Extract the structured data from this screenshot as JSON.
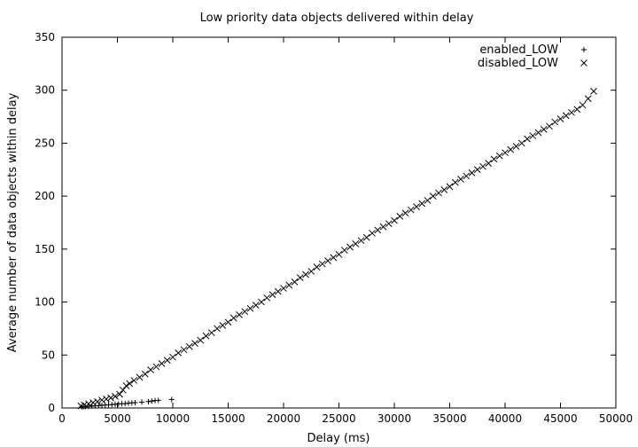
{
  "chart_data": {
    "type": "scatter",
    "title": "Low priority data objects delivered within delay",
    "xlabel": "Delay (ms)",
    "ylabel": "Average number of data objects within delay",
    "xlim": [
      0,
      50000
    ],
    "ylim": [
      0,
      350
    ],
    "xticks": [
      0,
      5000,
      10000,
      15000,
      20000,
      25000,
      30000,
      35000,
      40000,
      45000,
      50000
    ],
    "yticks": [
      0,
      50,
      100,
      150,
      200,
      250,
      300,
      350
    ],
    "grid": false,
    "legend_position": "top-right",
    "series": [
      {
        "name": "enabled_LOW",
        "marker": "+",
        "points": [
          [
            1800,
            1
          ],
          [
            2100,
            1.2
          ],
          [
            2400,
            1.5
          ],
          [
            2700,
            1.8
          ],
          [
            3000,
            2
          ],
          [
            3300,
            2.2
          ],
          [
            3600,
            2.5
          ],
          [
            3900,
            2.8
          ],
          [
            4200,
            3
          ],
          [
            4500,
            3.2
          ],
          [
            4800,
            3.5
          ],
          [
            5100,
            3.8
          ],
          [
            5400,
            4
          ],
          [
            5700,
            4.2
          ],
          [
            6000,
            4.5
          ],
          [
            6300,
            4.8
          ],
          [
            6600,
            5
          ],
          [
            7200,
            5.5
          ],
          [
            7800,
            6
          ],
          [
            8100,
            6.5
          ],
          [
            8400,
            7
          ],
          [
            8700,
            7.2
          ],
          [
            9900,
            8
          ]
        ]
      },
      {
        "name": "disabled_LOW",
        "marker": "x",
        "points": [
          [
            1700,
            2
          ],
          [
            2000,
            3
          ],
          [
            2400,
            4
          ],
          [
            2800,
            5
          ],
          [
            3200,
            6
          ],
          [
            3600,
            7.5
          ],
          [
            4000,
            8.5
          ],
          [
            4400,
            9.5
          ],
          [
            4800,
            11
          ],
          [
            5200,
            13
          ],
          [
            5500,
            17
          ],
          [
            5800,
            21
          ],
          [
            6100,
            23
          ],
          [
            6500,
            26
          ],
          [
            7000,
            29
          ],
          [
            7500,
            32
          ],
          [
            8000,
            36
          ],
          [
            8500,
            39
          ],
          [
            9000,
            42
          ],
          [
            9500,
            45
          ],
          [
            10000,
            48
          ],
          [
            10500,
            52
          ],
          [
            11000,
            55
          ],
          [
            11500,
            58
          ],
          [
            12000,
            61
          ],
          [
            12500,
            64
          ],
          [
            13000,
            68
          ],
          [
            13500,
            71
          ],
          [
            14000,
            75
          ],
          [
            14500,
            78
          ],
          [
            15000,
            81
          ],
          [
            15500,
            85
          ],
          [
            16000,
            88
          ],
          [
            16500,
            91
          ],
          [
            17000,
            94
          ],
          [
            17500,
            97
          ],
          [
            18000,
            100
          ],
          [
            18500,
            104
          ],
          [
            19000,
            107
          ],
          [
            19500,
            110
          ],
          [
            20000,
            113
          ],
          [
            20500,
            116
          ],
          [
            21000,
            119
          ],
          [
            21500,
            123
          ],
          [
            22000,
            126
          ],
          [
            22500,
            129
          ],
          [
            23000,
            133
          ],
          [
            23500,
            136
          ],
          [
            24000,
            139
          ],
          [
            24500,
            142
          ],
          [
            25000,
            145
          ],
          [
            25500,
            149
          ],
          [
            26000,
            152
          ],
          [
            26500,
            155
          ],
          [
            27000,
            158
          ],
          [
            27500,
            161
          ],
          [
            28000,
            165
          ],
          [
            28500,
            168
          ],
          [
            29000,
            171
          ],
          [
            29500,
            174
          ],
          [
            30000,
            177
          ],
          [
            30500,
            181
          ],
          [
            31000,
            184
          ],
          [
            31500,
            187
          ],
          [
            32000,
            190
          ],
          [
            32500,
            193
          ],
          [
            33000,
            196
          ],
          [
            33500,
            200
          ],
          [
            34000,
            203
          ],
          [
            34500,
            206
          ],
          [
            35000,
            209
          ],
          [
            35500,
            213
          ],
          [
            36000,
            216
          ],
          [
            36500,
            219
          ],
          [
            37000,
            222
          ],
          [
            37500,
            225
          ],
          [
            38000,
            228
          ],
          [
            38500,
            231
          ],
          [
            39000,
            235
          ],
          [
            39500,
            238
          ],
          [
            40000,
            241
          ],
          [
            40500,
            244
          ],
          [
            41000,
            247
          ],
          [
            41500,
            250
          ],
          [
            42000,
            254
          ],
          [
            42500,
            257
          ],
          [
            43000,
            260
          ],
          [
            43500,
            263
          ],
          [
            44000,
            266
          ],
          [
            44500,
            270
          ],
          [
            45000,
            273
          ],
          [
            45500,
            276
          ],
          [
            46000,
            279
          ],
          [
            46500,
            282
          ],
          [
            47000,
            286
          ],
          [
            47500,
            292
          ],
          [
            48000,
            299
          ]
        ]
      }
    ]
  }
}
